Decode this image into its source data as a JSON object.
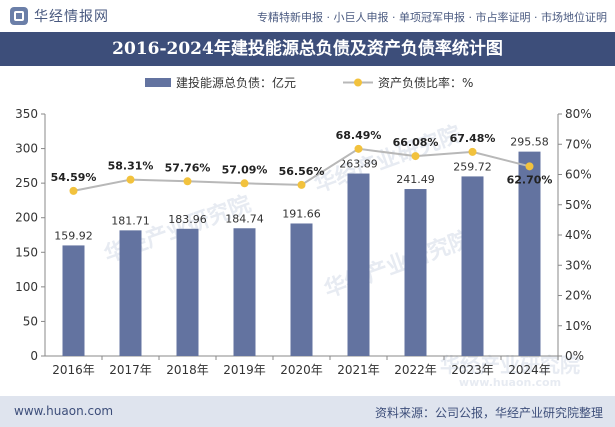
{
  "header": {
    "logo_text": "华经情报网",
    "tagline": "专精特新申报 · 小巨人申报 · 单项冠军申报 · 市占率证明 · 市场地位证明"
  },
  "chart_data": {
    "type": "bar+line",
    "title": "2016-2024年建投能源总负债及资产负债率统计图",
    "categories": [
      "2016年",
      "2017年",
      "2018年",
      "2019年",
      "2020年",
      "2021年",
      "2022年",
      "2023年",
      "2024年"
    ],
    "series": [
      {
        "name": "建投能源总负债：亿元",
        "type": "bar",
        "axis": "left",
        "color": "#6373a0",
        "values": [
          159.92,
          181.71,
          183.96,
          184.74,
          191.66,
          263.89,
          241.49,
          259.72,
          295.58
        ],
        "labels": [
          "159.92",
          "181.71",
          "183.96",
          "184.74",
          "191.66",
          "263.89",
          "241.49",
          "259.72",
          "295.58"
        ]
      },
      {
        "name": "资产负债比率：%",
        "type": "line",
        "axis": "right",
        "color": "#b8b8b8",
        "marker_color": "#f2c23d",
        "values": [
          54.59,
          58.31,
          57.76,
          57.09,
          56.56,
          68.49,
          66.08,
          67.48,
          62.7
        ],
        "labels": [
          "54.59%",
          "58.31%",
          "57.76%",
          "57.09%",
          "56.56%",
          "68.49%",
          "66.08%",
          "67.48%",
          "62.70%"
        ]
      }
    ],
    "y_left": {
      "min": 0,
      "max": 350,
      "ticks": [
        "0",
        "50",
        "100",
        "150",
        "200",
        "250",
        "300",
        "350"
      ]
    },
    "y_right": {
      "min": 0,
      "max": 80,
      "ticks": [
        "0%",
        "10%",
        "20%",
        "30%",
        "40%",
        "50%",
        "60%",
        "70%",
        "80%"
      ]
    },
    "legend_position": "top",
    "grid": false,
    "watermark": "华经产业研究院",
    "watermark_url": "www.huaon.com"
  },
  "footer": {
    "url": "www.huaon.com",
    "source": "资料来源：公司公报，华经产业研究院整理"
  }
}
